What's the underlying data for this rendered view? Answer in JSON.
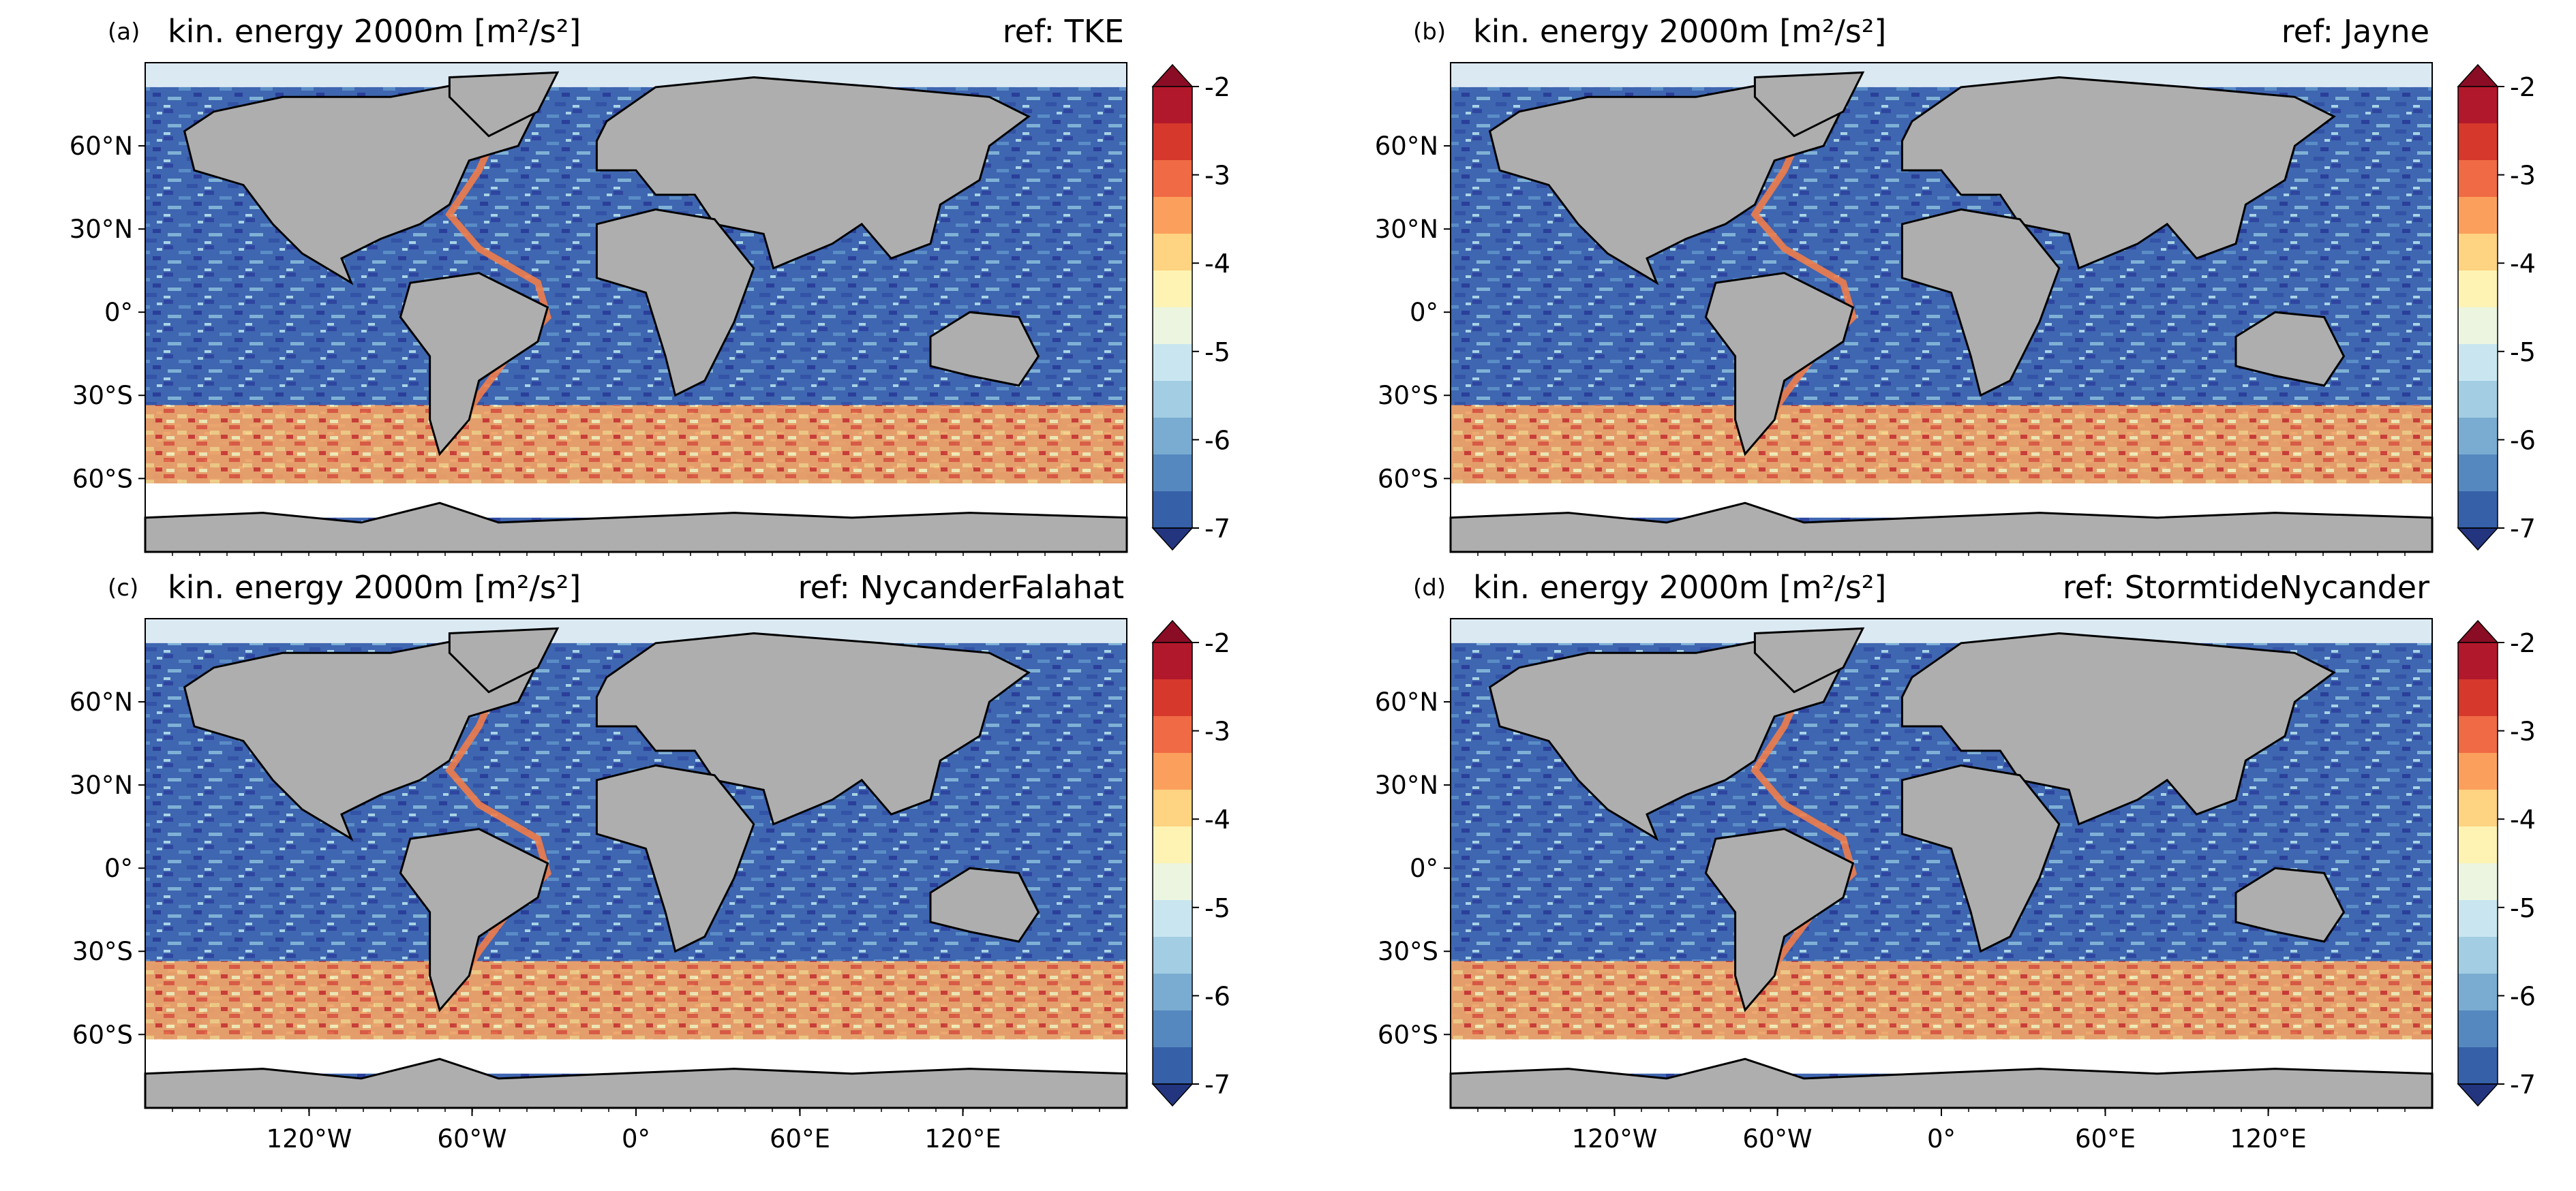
{
  "figure": {
    "panels": [
      {
        "letter": "(a)",
        "title": "kin. energy 2000m [m²/s²]",
        "ref": "ref: TKE"
      },
      {
        "letter": "(b)",
        "title": "kin. energy 2000m [m²/s²]",
        "ref": "ref: Jayne"
      },
      {
        "letter": "(c)",
        "title": "kin. energy 2000m [m²/s²]",
        "ref": "ref: NycanderFalahat"
      },
      {
        "letter": "(d)",
        "title": "kin. energy 2000m [m²/s²]",
        "ref": "ref: StormtideNycander"
      }
    ],
    "lat_labels": [
      "60°N",
      "30°N",
      "0°",
      "30°S",
      "60°S"
    ],
    "lon_labels": [
      "120°W",
      "60°W",
      "0°",
      "60°E",
      "120°E"
    ],
    "colorbar": {
      "tick_labels": [
        "-2",
        "-3",
        "-4",
        "-5",
        "-6",
        "-7"
      ],
      "colors": [
        "#b2182b",
        "#d6382c",
        "#f06a45",
        "#fba05c",
        "#fed381",
        "#fff3b4",
        "#ebf5e0",
        "#c9e6f0",
        "#a2cde2",
        "#7aacd1",
        "#5588bf",
        "#3660a8"
      ],
      "extend_low": "#23357f",
      "extend_high": "#8b0d25"
    },
    "colors": {
      "land": "#aeaeae",
      "coast": "#000000",
      "missing": "#ffffff"
    }
  }
}
